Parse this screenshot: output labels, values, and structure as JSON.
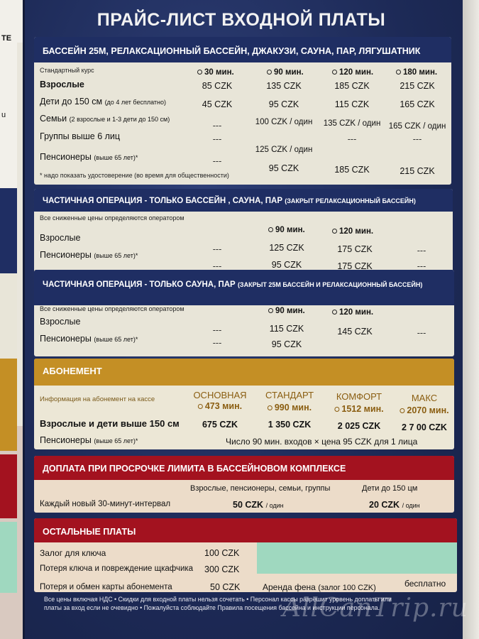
{
  "left_strip_text": [
    "ТЕ",
    "u"
  ],
  "title": "ПРАЙС-ЛИСТ ВХОДНОЙ ПЛАТЫ",
  "s1": {
    "head": "БАССЕЙН 25М, РЕЛАКСАЦИОННЫЙ БАССЕЙН, ДЖАКУЗИ, САУНА, ПАР, ЛЯГУШАТНИК",
    "course_label": "Стандартный курс",
    "cols": [
      "30 мин.",
      "90 мин.",
      "120 мин.",
      "180 мин."
    ],
    "rows": [
      {
        "label": "Взрослые",
        "sub": "",
        "v": [
          "85 CZK",
          "135 CZK",
          "185 CZK",
          "215 CZK"
        ]
      },
      {
        "label": "Дети до 150 см",
        "sub": "(до 4 лет бесплатно)",
        "v": [
          "45 CZK",
          "95 CZK",
          "115 CZK",
          "165 CZK"
        ]
      },
      {
        "label": "Семьи",
        "sub": "(2 взрослые и 1-3 дети до 150 см)",
        "v": [
          "---",
          "100 CZK / один",
          "135 CZK / один",
          "165 CZK / один"
        ]
      },
      {
        "label": "Группы выше 6 лиц",
        "sub": "",
        "v": [
          "---",
          "125 CZK / один",
          "---",
          "---"
        ]
      },
      {
        "label": "Пенсионеры",
        "sub": "(выше 65 лет)*",
        "v": [
          "---",
          "95 CZK",
          "185 CZK",
          "215 CZK"
        ]
      }
    ],
    "note": "* надо показать удостоверение (во время для общественности)"
  },
  "s2": {
    "head": "ЧАСТИЧНАЯ ОПЕРАЦИЯ - ТОЛЬКО БАССЕЙН , САУНА, ПАР",
    "head_small": "(ЗАКРЫТ РЕЛАКСАЦИОННЫЙ БАССЕЙН)",
    "info": "Все сниженные цены определяются оператором",
    "cols": [
      "90 мин.",
      "120 мин."
    ],
    "rows": [
      {
        "label": "Взрослые",
        "sub": "",
        "v": [
          "---",
          "125 CZK",
          "175 CZK",
          "---"
        ]
      },
      {
        "label": "Пенсионеры",
        "sub": "(выше 65 лет)*",
        "v": [
          "---",
          "95 CZK",
          "175 CZK",
          "---"
        ]
      }
    ]
  },
  "s3": {
    "head": "ЧАСТИЧНАЯ ОПЕРАЦИЯ - ТОЛЬКО САУНА, ПАР",
    "head_small": "(ЗАКРЫТ 25М БАССЕЙН И РЕЛАКСАЦИОННЫЙ БАССЕЙН)",
    "info": "Все сниженные цены определяются оператором",
    "cols": [
      "90 мин.",
      "120 мин."
    ],
    "rows": [
      {
        "label": "Взрослые",
        "sub": "",
        "v": [
          "---",
          "115 CZK",
          "145 CZK",
          "---"
        ]
      },
      {
        "label": "Пенсионеры",
        "sub": "(выше 65 лет)*",
        "v": [
          "---",
          "95 CZK",
          "",
          ""
        ]
      }
    ]
  },
  "s4": {
    "head": "АБОНЕМЕНТ",
    "info": "Информация на абонемент на кассе",
    "plans": [
      {
        "name": "ОСНОВНАЯ",
        "mins": "473 мин."
      },
      {
        "name": "СТАНДАРТ",
        "mins": "990 мин."
      },
      {
        "name": "КОМФОРТ",
        "mins": "1512 мин."
      },
      {
        "name": "МАКС",
        "mins": "2070 мин."
      }
    ],
    "row1_label": "Взрослые и дети выше 150 см",
    "row1_values": [
      "675 CZK",
      "1 350 CZK",
      "2 025 CZK",
      "2 7 00 CZK"
    ],
    "row2_label": "Пенсионеры",
    "row2_sub": "(выше 65 лет)*",
    "row2_text": "Число 90 мин. входов × цена 95 CZK для 1 лица"
  },
  "s5": {
    "head": "ДОПЛАТА ПРИ ПРОСРОЧКЕ ЛИМИТА В БАССЕЙНОВОМ КОМПЛЕКСЕ",
    "col1": "Взрослые, пенсионеры, семьи, группы",
    "col2": "Дети до 150 цм",
    "row_label": "Каждый новый 30-минут-интервал",
    "v1": "50 CZK",
    "v2": "20 CZK",
    "unit": "/ один"
  },
  "s6": {
    "head": "ОСТАЛЬНЫЕ ПЛАТЫ",
    "rows": [
      {
        "label": "Залог для ключа",
        "value": "100 CZK"
      },
      {
        "label": "Потеря ключа и повреждение щкафчика",
        "value": "300 CZK"
      },
      {
        "label": "Потеря и обмен карты абонемента",
        "value": "50 CZK"
      }
    ],
    "extra_label": "Аренда фена",
    "extra_sub": "(залог 100 CZK)",
    "extra_value": "бесплатно"
  },
  "footer": [
    "Все цены включая НДС • Скидки для входной платы нельзя сочетать • Персонал кассы разрешит уровень доплаты или",
    "платы за вход если не очевидно • Пожалуйста соблюдайте Правила посещения бассейна и инструкции персонала."
  ],
  "watermark": "AllCanTrip.ru",
  "colors": {
    "navy": "#1f2e63",
    "gold": "#c48f25",
    "red": "#a3121f",
    "panel": "#e8e5d8",
    "green": "#9fd8bf"
  }
}
